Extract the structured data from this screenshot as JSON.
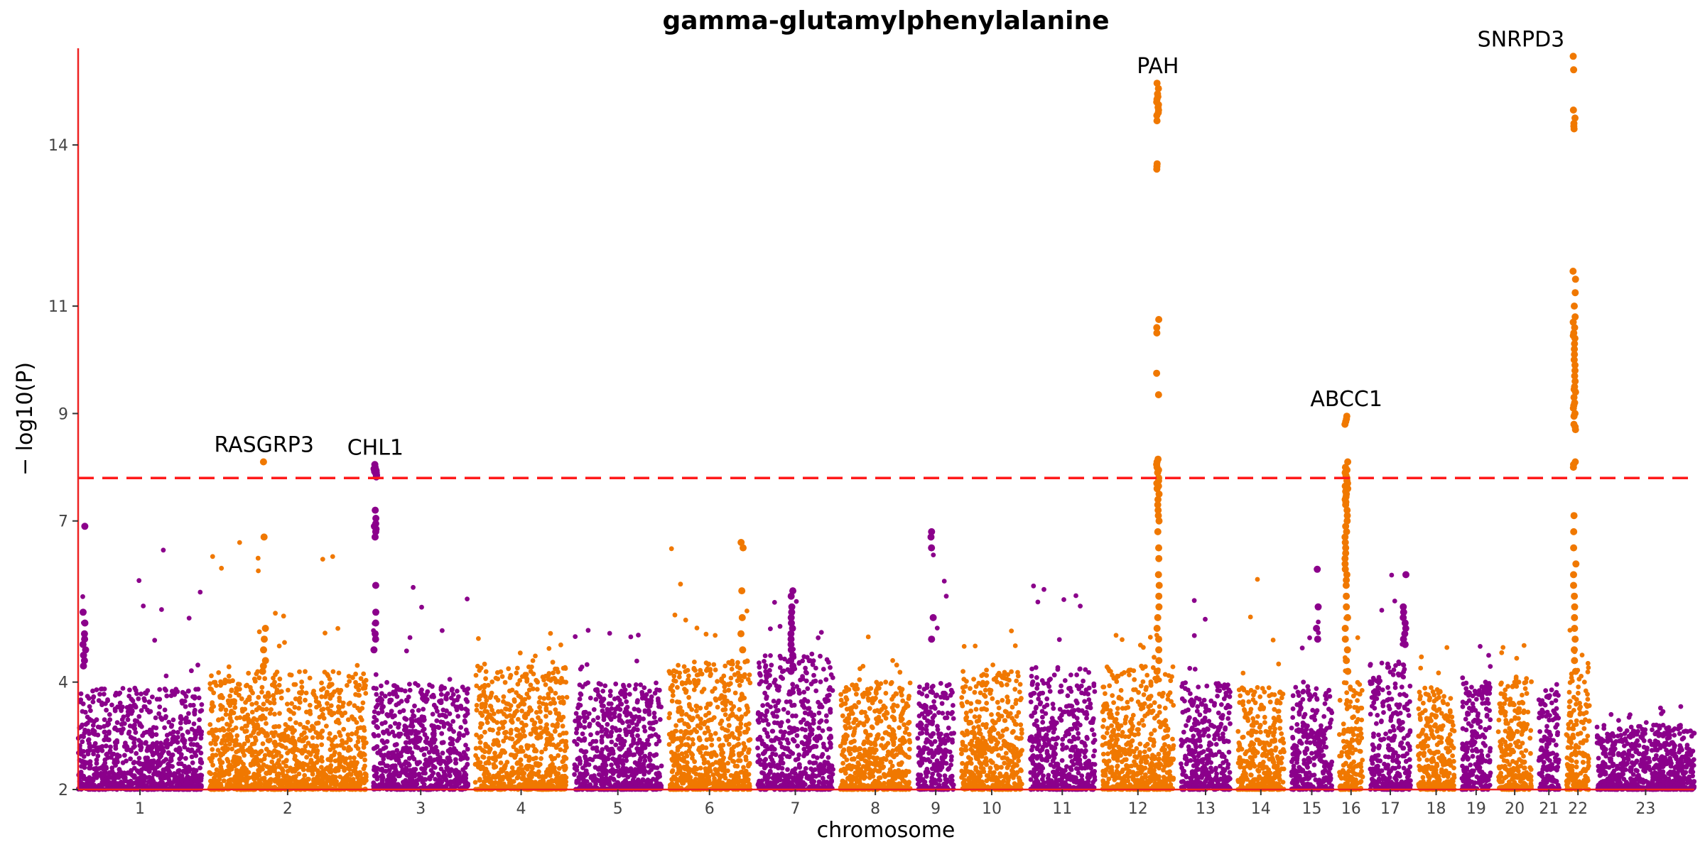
{
  "chart_data": {
    "type": "scatter",
    "title": "gamma-glutamylphenylalanine",
    "xlabel": "chromosome",
    "ylabel": "− log10(P)",
    "ylim": [
      2,
      15.8
    ],
    "yticks": [
      "2",
      "4",
      "7",
      "9",
      "11",
      "14"
    ],
    "ytick_values": [
      2,
      4,
      7,
      9,
      11,
      14
    ],
    "significance_threshold": 7.8,
    "colors": {
      "odd": "#8b008b",
      "even": "#f07800",
      "threshold": "#ff1a1a",
      "axis": "#ee2222"
    },
    "chromosomes": [
      {
        "label": "1",
        "width": 0.085,
        "base_max": 3.9,
        "peak": 6.9
      },
      {
        "label": "2",
        "width": 0.108,
        "base_max": 4.2,
        "peak": 6.6
      },
      {
        "label": "3",
        "width": 0.065,
        "base_max": 4.0,
        "peak": 5.9
      },
      {
        "label": "4",
        "width": 0.063,
        "base_max": 4.3,
        "peak": 5.0
      },
      {
        "label": "5",
        "width": 0.06,
        "base_max": 4.0,
        "peak": 5.2
      },
      {
        "label": "6",
        "width": 0.056,
        "base_max": 4.4,
        "peak": 6.5
      },
      {
        "label": "7",
        "width": 0.052,
        "base_max": 4.5,
        "peak": 5.7
      },
      {
        "label": "8",
        "width": 0.048,
        "base_max": 4.0,
        "peak": 5.0
      },
      {
        "label": "9",
        "width": 0.025,
        "base_max": 4.0,
        "peak": 6.8
      },
      {
        "label": "10",
        "width": 0.042,
        "base_max": 4.2,
        "peak": 5.0
      },
      {
        "label": "11",
        "width": 0.045,
        "base_max": 4.3,
        "peak": 5.8
      },
      {
        "label": "12",
        "width": 0.049,
        "base_max": 4.3,
        "peak": 5.0
      },
      {
        "label": "13",
        "width": 0.034,
        "base_max": 4.0,
        "peak": 6.1
      },
      {
        "label": "14",
        "width": 0.032,
        "base_max": 3.9,
        "peak": 6.0
      },
      {
        "label": "15",
        "width": 0.028,
        "base_max": 4.0,
        "peak": 5.3
      },
      {
        "label": "16",
        "width": 0.016,
        "base_max": 4.0,
        "peak": 5.5
      },
      {
        "label": "17",
        "width": 0.028,
        "base_max": 4.4,
        "peak": 6.0
      },
      {
        "label": "18",
        "width": 0.025,
        "base_max": 3.9,
        "peak": 4.8
      },
      {
        "label": "19",
        "width": 0.02,
        "base_max": 4.0,
        "peak": 4.7
      },
      {
        "label": "20",
        "width": 0.023,
        "base_max": 4.1,
        "peak": 4.9
      },
      {
        "label": "21",
        "width": 0.014,
        "base_max": 3.8,
        "peak": 4.0
      },
      {
        "label": "22",
        "width": 0.016,
        "base_max": 4.3,
        "peak": 5.0
      },
      {
        "label": "23",
        "width": 0.067,
        "base_max": 3.2,
        "peak": 3.6
      }
    ],
    "signals": [
      {
        "chrom": "1",
        "pos": 0.05,
        "values": [
          6.9,
          5.3,
          5.1,
          4.9,
          4.8,
          4.7,
          4.6,
          4.5,
          4.4,
          4.3
        ]
      },
      {
        "chrom": "2",
        "pos": 0.35,
        "values": [
          8.1,
          6.7,
          5.0,
          4.8,
          4.6,
          4.4,
          4.3,
          4.2
        ]
      },
      {
        "chrom": "3",
        "pos": 0.02,
        "values": [
          8.05,
          8.0,
          7.97,
          7.94,
          7.92,
          7.9,
          7.88,
          7.85,
          7.82,
          7.2,
          7.05,
          6.95,
          6.9,
          6.85,
          6.8,
          6.7,
          5.8,
          5.3,
          5.1,
          4.9,
          4.8,
          4.6
        ]
      },
      {
        "chrom": "6",
        "pos": 0.9,
        "values": [
          6.6,
          6.5,
          5.7,
          5.2,
          4.9,
          4.6
        ]
      },
      {
        "chrom": "7",
        "pos": 0.45,
        "values": [
          5.7,
          5.6,
          5.4,
          5.3,
          5.2,
          5.1,
          5.0,
          4.9,
          4.8,
          4.7,
          4.6,
          4.5,
          4.4,
          4.3,
          4.2
        ]
      },
      {
        "chrom": "9",
        "pos": 0.4,
        "values": [
          6.8,
          6.7,
          6.5,
          5.2,
          4.8
        ]
      },
      {
        "chrom": "12",
        "pos": 0.78,
        "values": [
          15.15,
          15.05,
          14.95,
          14.9,
          14.85,
          14.8,
          14.75,
          14.7,
          14.65,
          14.6,
          14.55,
          14.45,
          13.65,
          13.6,
          13.55,
          10.75,
          10.6,
          10.5,
          9.75,
          9.35,
          8.15,
          8.1,
          8.05,
          8.0,
          7.95,
          7.9,
          7.8,
          7.75,
          7.7,
          7.65,
          7.6,
          7.5,
          7.4,
          7.3,
          7.2,
          7.1,
          7.0,
          6.8,
          6.5,
          6.3,
          6.0,
          5.8,
          5.6,
          5.4,
          5.2,
          5.0,
          4.8,
          4.6,
          4.4,
          4.2
        ]
      },
      {
        "chrom": "15",
        "pos": 0.65,
        "values": [
          6.1,
          5.4,
          5.0,
          4.8
        ]
      },
      {
        "chrom": "16",
        "pos": 0.3,
        "values": [
          8.95,
          8.9,
          8.85,
          8.8,
          8.1,
          8.0,
          7.95,
          7.9,
          7.85,
          7.8,
          7.75,
          7.7,
          7.65,
          7.6,
          7.55,
          7.5,
          7.45,
          7.4,
          7.35,
          7.3,
          7.2,
          7.1,
          7.0,
          6.9,
          6.8,
          6.7,
          6.6,
          6.5,
          6.4,
          6.3,
          6.2,
          6.1,
          6.0,
          5.9,
          5.8,
          5.6,
          5.4,
          5.2,
          5.0,
          4.8,
          4.6,
          4.4,
          4.2
        ]
      },
      {
        "chrom": "17",
        "pos": 0.85,
        "values": [
          6.0,
          5.4,
          5.3,
          5.2,
          5.1,
          5.0,
          4.9,
          4.8,
          4.7
        ]
      },
      {
        "chrom": "22",
        "pos": 0.35,
        "values": [
          15.65,
          15.4,
          14.65,
          14.5,
          14.4,
          14.35,
          14.3,
          11.65,
          11.5,
          11.25,
          11.0,
          10.8,
          10.7,
          10.6,
          10.5,
          10.45,
          10.4,
          10.3,
          10.2,
          10.1,
          10.0,
          9.9,
          9.8,
          9.7,
          9.6,
          9.5,
          9.45,
          9.4,
          9.3,
          9.2,
          9.15,
          9.1,
          9.0,
          8.95,
          8.8,
          8.75,
          8.7,
          8.1,
          8.05,
          8.0,
          7.1,
          6.8,
          6.5,
          6.2,
          6.0,
          5.8,
          5.6,
          5.4,
          5.2,
          5.0,
          4.8,
          4.6,
          4.4,
          4.2
        ]
      }
    ],
    "annotations": [
      {
        "label": "RASGRP3",
        "chrom": "2"
      },
      {
        "label": "CHL1",
        "chrom": "3"
      },
      {
        "label": "PAH",
        "chrom": "12"
      },
      {
        "label": "ABCC1",
        "chrom": "16"
      },
      {
        "label": "SNRPD3",
        "chrom": "22"
      }
    ]
  }
}
